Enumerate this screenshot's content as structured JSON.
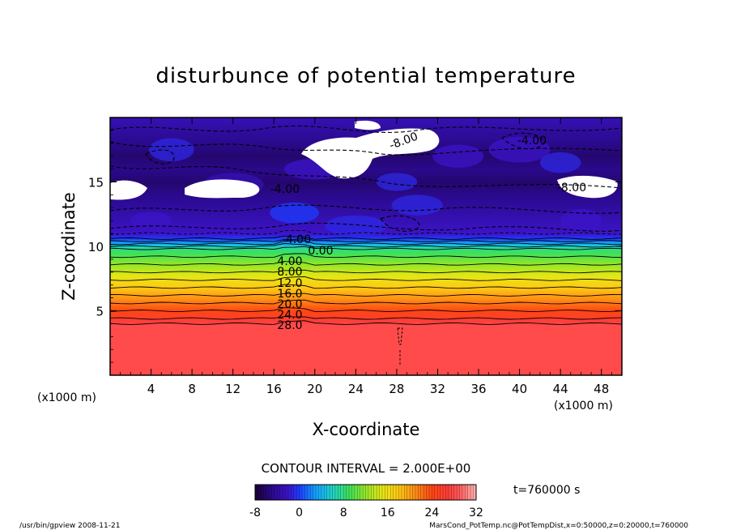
{
  "chart_data": {
    "type": "heatmap",
    "title": "disturbunce of potential temperature",
    "xlabel": "X-coordinate",
    "ylabel": "Z-coordinate",
    "x_unit": "(x1000 m)",
    "z_unit": "(x1000 m)",
    "xlim": [
      0,
      50
    ],
    "zlim": [
      0,
      20
    ],
    "x_ticks": [
      4,
      8,
      12,
      16,
      20,
      24,
      28,
      32,
      36,
      40,
      44,
      48
    ],
    "z_ticks": [
      5,
      10,
      15
    ],
    "contour_interval_text": "CONTOUR INTERVAL = 2.000E+00",
    "contour_labels": [
      "-8.00",
      "-4.00",
      "-8.00",
      "-4.00",
      "-4.00",
      "0.00",
      "4.00",
      "8.00",
      "12.0",
      "16.0",
      "20.0",
      "24.0",
      "28.0"
    ],
    "colorbar": {
      "min": -8,
      "max": 32,
      "ticks": [
        -8,
        0,
        8,
        16,
        24,
        32
      ]
    },
    "profile": {
      "z": [
        0,
        4,
        4.4,
        5,
        5.6,
        6.2,
        6.8,
        7.4,
        8,
        8.6,
        9.2,
        9.8,
        10.2,
        10.6,
        11,
        12,
        13,
        14,
        15,
        16,
        17,
        18,
        19,
        20
      ],
      "value": [
        28,
        28,
        26,
        24,
        22,
        20,
        18,
        16,
        14,
        12,
        10,
        8,
        4,
        0,
        -2,
        -3,
        -4,
        -5,
        -6,
        -5,
        -6,
        -5,
        -4,
        -3
      ]
    },
    "time_label": "t=760000 s"
  },
  "footer": {
    "left": "/usr/bin/gpview   2008-11-21",
    "right": "MarsCond_PotTemp.nc@PotTempDist,x=0:50000,z=0:20000,t=760000"
  }
}
